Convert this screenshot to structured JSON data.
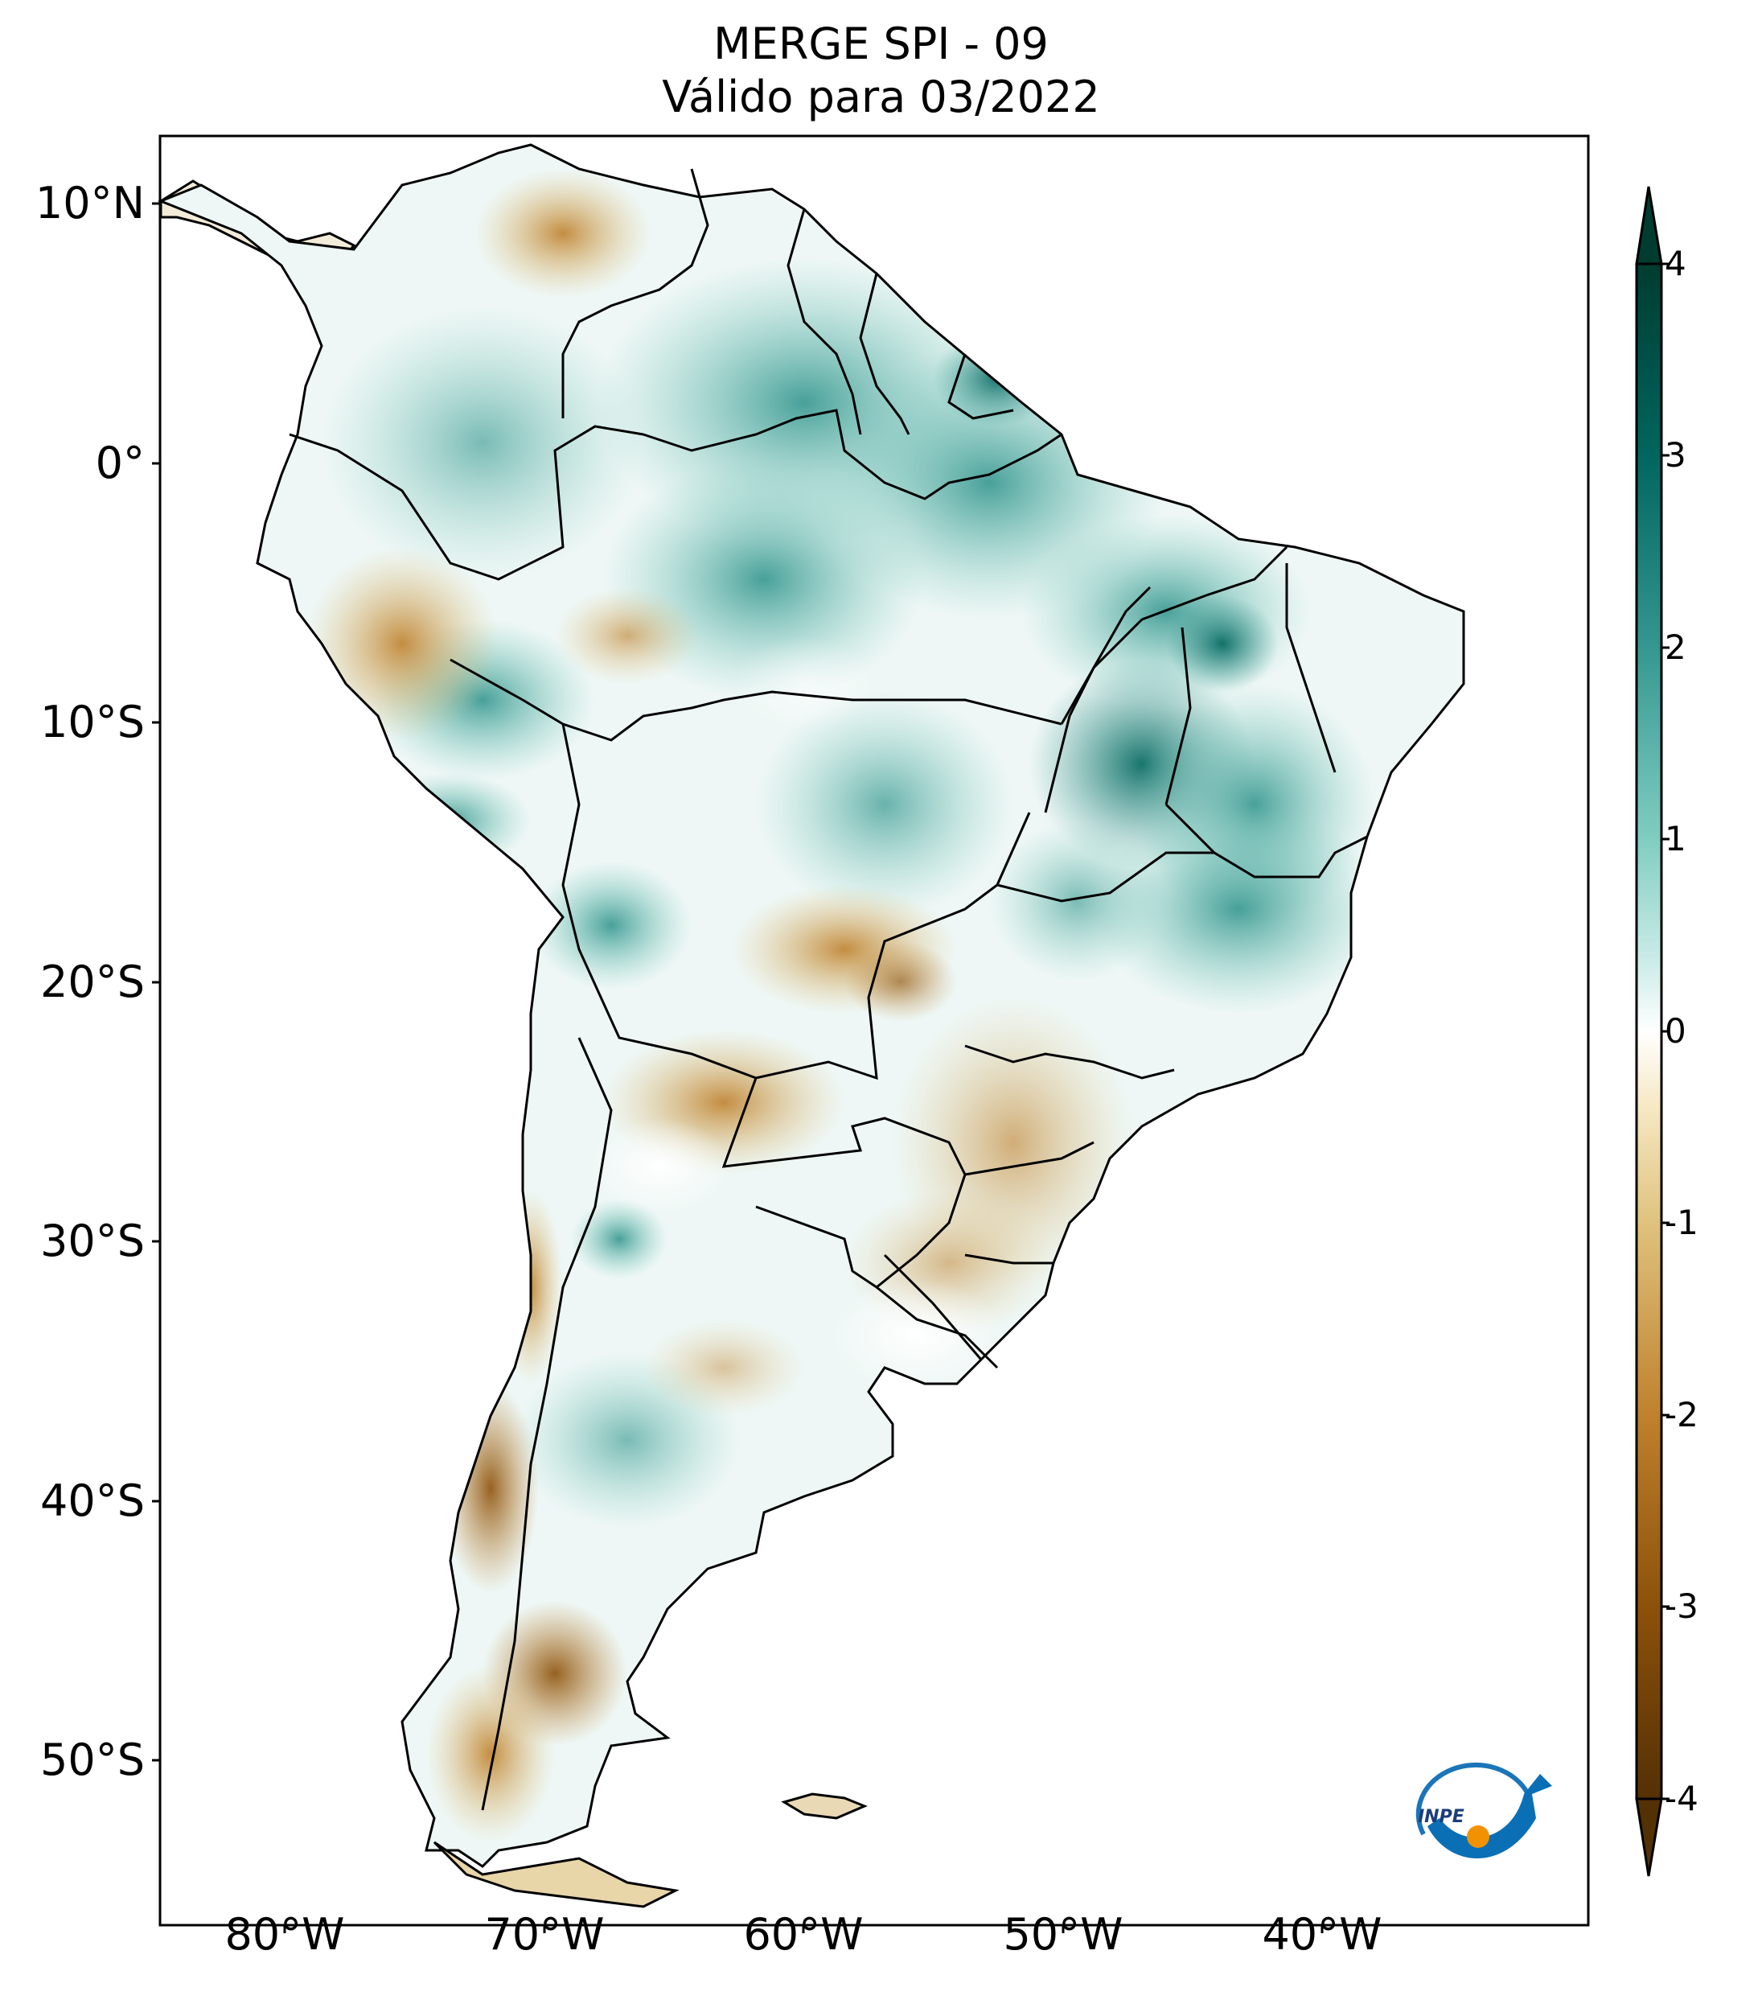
{
  "title": {
    "line1": "MERGE   SPI - 09",
    "line2": "Válido para 03/2022"
  },
  "lat_labels": [
    "10°N",
    "0°",
    "10°S",
    "20°S",
    "30°S",
    "40°S",
    "50°S"
  ],
  "lon_labels": [
    "80°W",
    "70°W",
    "60°W",
    "50°W",
    "40°W"
  ],
  "colorbar": {
    "ticks": [
      "4",
      "3",
      "2",
      "1",
      "0",
      "-1",
      "-2",
      "-3",
      "-4"
    ],
    "range": [
      -4,
      4
    ],
    "colors": {
      "max": "#003c30",
      "high": "#01665e",
      "mid_high": "#35978f",
      "light_high": "#80cdc1",
      "pale_high": "#c7eae5",
      "neutral": "#f5f5f5",
      "pale_low": "#f6e8c3",
      "light_low": "#dfc27d",
      "mid_low": "#bf812d",
      "low": "#8c510a",
      "min": "#543005"
    },
    "extend": "both"
  },
  "map": {
    "region": "South America",
    "lon_range": [
      -85,
      -30
    ],
    "lat_range": [
      -57,
      13
    ],
    "variable": "SPI - 09"
  },
  "logo": {
    "text": "INPE"
  }
}
